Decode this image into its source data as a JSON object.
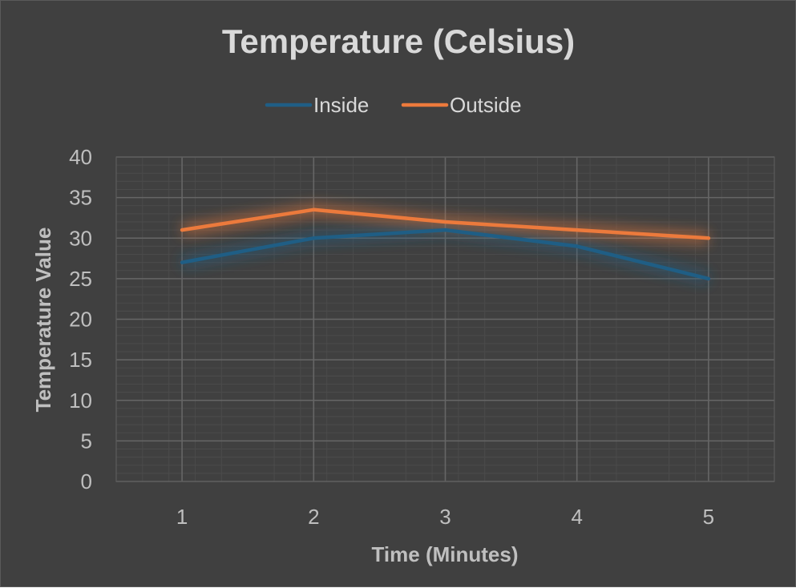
{
  "chart_data": {
    "type": "line",
    "title": "Temperature (Celsius)",
    "xlabel": "Time (Minutes)",
    "ylabel": "Temperature Value",
    "categories": [
      "1",
      "2",
      "3",
      "4",
      "5"
    ],
    "series": [
      {
        "name": "Inside",
        "values": [
          27,
          30,
          31,
          29,
          25
        ],
        "color": "#1f5e85"
      },
      {
        "name": "Outside",
        "values": [
          31,
          33.5,
          32,
          31,
          30
        ],
        "color": "#ec7a3c"
      }
    ],
    "ylim": [
      0,
      40
    ],
    "yticks": [
      "0",
      "5",
      "10",
      "15",
      "20",
      "25",
      "30",
      "35",
      "40"
    ],
    "grid": true,
    "legend_position": "top",
    "background": "#404040"
  }
}
